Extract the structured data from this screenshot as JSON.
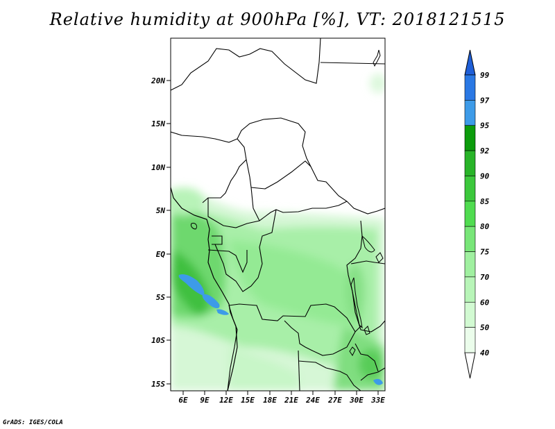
{
  "title": "Relative humidity at 900hPa [%], VT: 2018121515",
  "credit": "GrADS: IGES/COLA",
  "map": {
    "lat_ticks": [
      "20N",
      "15N",
      "10N",
      "5N",
      "EQ",
      "5S",
      "10S",
      "15S"
    ],
    "lon_ticks": [
      "6E",
      "9E",
      "12E",
      "15E",
      "18E",
      "21E",
      "24E",
      "27E",
      "30E",
      "33E"
    ]
  },
  "colorbar": {
    "labels": [
      "99",
      "97",
      "95",
      "92",
      "90",
      "85",
      "80",
      "75",
      "70",
      "60",
      "50",
      "40"
    ],
    "colors": [
      "#1f5fd8",
      "#2a78e4",
      "#3d9be8",
      "#0c9c0c",
      "#28b428",
      "#3cc83c",
      "#50dc50",
      "#78e678",
      "#a0f0a0",
      "#b8f5b8",
      "#d2fad2",
      "#ebfdeb"
    ]
  }
}
